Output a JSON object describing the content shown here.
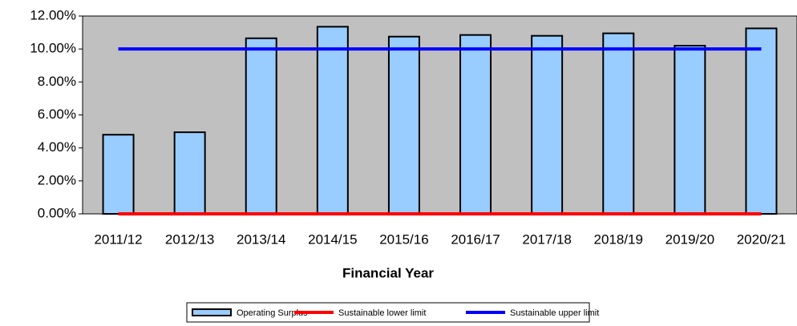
{
  "chart_data": {
    "type": "bar",
    "x_label": "Financial Year",
    "categories": [
      "2011/12",
      "2012/13",
      "2013/14",
      "2014/15",
      "2015/16",
      "2016/17",
      "2017/18",
      "2018/19",
      "2019/20",
      "2020/21"
    ],
    "series": [
      {
        "name": "Operating Surplus",
        "type": "bar",
        "color": "#99ccff",
        "values": [
          4.8,
          4.95,
          10.65,
          11.35,
          10.75,
          10.85,
          10.8,
          10.95,
          10.2,
          11.25
        ]
      },
      {
        "name": "Sustainable lower limit",
        "type": "line",
        "color": "#ff0000",
        "values": [
          0,
          0,
          0,
          0,
          0,
          0,
          0,
          0,
          0,
          0
        ]
      },
      {
        "name": "Sustainable upper limit",
        "type": "line",
        "color": "#0000ff",
        "values": [
          10,
          10,
          10,
          10,
          10,
          10,
          10,
          10,
          10,
          10
        ]
      }
    ],
    "ylim": [
      0,
      12
    ],
    "yticks": [
      {
        "value": 0,
        "label": "0.00%"
      },
      {
        "value": 2,
        "label": "2.00%"
      },
      {
        "value": 4,
        "label": "4.00%"
      },
      {
        "value": 6,
        "label": "6.00%"
      },
      {
        "value": 8,
        "label": "8.00%"
      },
      {
        "value": 10,
        "label": "10.00%"
      },
      {
        "value": 12,
        "label": "12.00%"
      }
    ],
    "grid": false,
    "plot_background": "#c0c0c0",
    "legend": "bottom"
  }
}
